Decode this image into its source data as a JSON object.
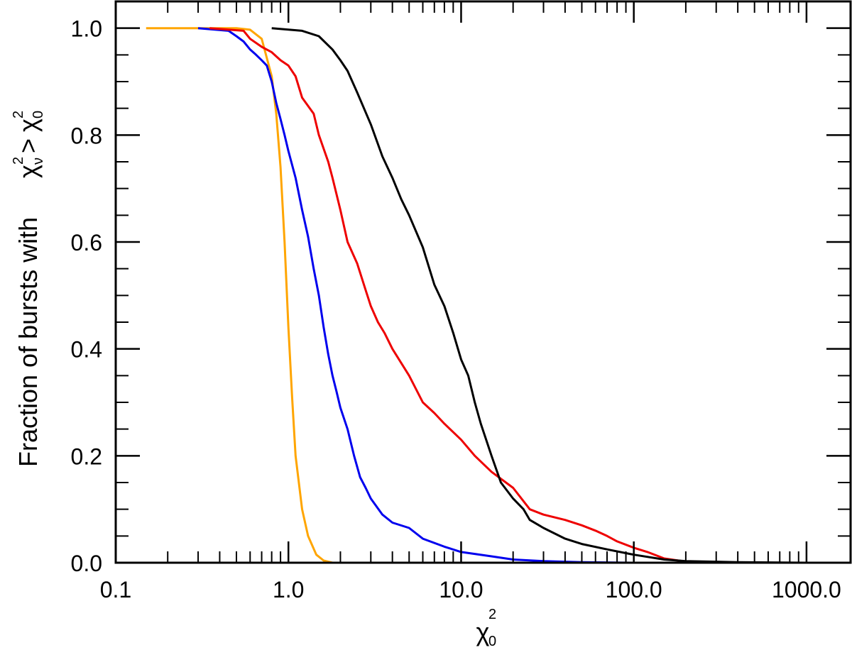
{
  "chart_data": {
    "type": "line",
    "title": "",
    "x_scale": "log",
    "xlim": [
      0.1,
      1800
    ],
    "ylim": [
      0,
      1.05
    ],
    "grid": false,
    "legend": "none",
    "xlabel": {
      "symbol": "χ",
      "superscript": "2",
      "subscript": "0"
    },
    "ylabel": {
      "prefix": "Fraction of bursts with",
      "lhs_symbol": "χ",
      "lhs_superscript": "2",
      "lhs_subscript": "ν",
      "relation": ">",
      "rhs_symbol": "χ",
      "rhs_superscript": "2",
      "rhs_subscript": "0"
    },
    "x_tick_values": [
      0.1,
      1,
      10,
      100,
      1000
    ],
    "x_tick_labels": [
      "0.1",
      "1.0",
      "10.0",
      "100.0",
      "1000.0"
    ],
    "y_tick_values": [
      0,
      0.2,
      0.4,
      0.6,
      0.8,
      1.0
    ],
    "y_tick_labels": [
      "0.0",
      "0.2",
      "0.4",
      "0.6",
      "0.8",
      "1.0"
    ],
    "series": [
      {
        "color": "#ffa500",
        "points": [
          [
            0.15,
            1.0
          ],
          [
            0.5,
            1.0
          ],
          [
            0.6,
            0.997
          ],
          [
            0.7,
            0.98
          ],
          [
            0.8,
            0.91
          ],
          [
            0.85,
            0.84
          ],
          [
            0.9,
            0.74
          ],
          [
            0.95,
            0.6
          ],
          [
            1.0,
            0.44
          ],
          [
            1.05,
            0.31
          ],
          [
            1.1,
            0.2
          ],
          [
            1.2,
            0.1
          ],
          [
            1.3,
            0.05
          ],
          [
            1.45,
            0.015
          ],
          [
            1.6,
            0.004
          ],
          [
            1.8,
            0.0
          ],
          [
            2.5,
            0.0
          ]
        ]
      },
      {
        "color": "#0000ee",
        "points": [
          [
            0.3,
            1.0
          ],
          [
            0.45,
            0.995
          ],
          [
            0.5,
            0.985
          ],
          [
            0.55,
            0.975
          ],
          [
            0.6,
            0.96
          ],
          [
            0.65,
            0.95
          ],
          [
            0.7,
            0.94
          ],
          [
            0.75,
            0.93
          ],
          [
            0.8,
            0.9
          ],
          [
            0.85,
            0.86
          ],
          [
            0.9,
            0.83
          ],
          [
            0.95,
            0.8
          ],
          [
            1.0,
            0.77
          ],
          [
            1.1,
            0.72
          ],
          [
            1.2,
            0.66
          ],
          [
            1.3,
            0.61
          ],
          [
            1.4,
            0.55
          ],
          [
            1.5,
            0.5
          ],
          [
            1.6,
            0.44
          ],
          [
            1.7,
            0.39
          ],
          [
            1.8,
            0.35
          ],
          [
            1.9,
            0.32
          ],
          [
            2.0,
            0.29
          ],
          [
            2.2,
            0.25
          ],
          [
            2.4,
            0.2
          ],
          [
            2.6,
            0.16
          ],
          [
            2.8,
            0.14
          ],
          [
            3.0,
            0.12
          ],
          [
            3.5,
            0.09
          ],
          [
            4.0,
            0.075
          ],
          [
            5.0,
            0.065
          ],
          [
            6.0,
            0.045
          ],
          [
            8.0,
            0.03
          ],
          [
            10.0,
            0.02
          ],
          [
            15.0,
            0.012
          ],
          [
            20.0,
            0.006
          ],
          [
            30.0,
            0.003
          ],
          [
            50.0,
            0.001
          ],
          [
            100.0,
            0.0
          ],
          [
            400.0,
            0.0
          ]
        ]
      },
      {
        "color": "#ee0000",
        "points": [
          [
            0.35,
            1.0
          ],
          [
            0.55,
            0.995
          ],
          [
            0.6,
            0.98
          ],
          [
            0.7,
            0.965
          ],
          [
            0.8,
            0.955
          ],
          [
            0.9,
            0.94
          ],
          [
            1.0,
            0.93
          ],
          [
            1.1,
            0.91
          ],
          [
            1.2,
            0.87
          ],
          [
            1.4,
            0.84
          ],
          [
            1.5,
            0.8
          ],
          [
            1.7,
            0.75
          ],
          [
            1.8,
            0.72
          ],
          [
            2.0,
            0.66
          ],
          [
            2.2,
            0.6
          ],
          [
            2.5,
            0.56
          ],
          [
            2.8,
            0.51
          ],
          [
            3.0,
            0.48
          ],
          [
            3.3,
            0.45
          ],
          [
            3.6,
            0.43
          ],
          [
            4.0,
            0.4
          ],
          [
            5.0,
            0.35
          ],
          [
            6.0,
            0.3
          ],
          [
            7.0,
            0.28
          ],
          [
            8.0,
            0.26
          ],
          [
            10.0,
            0.23
          ],
          [
            12.0,
            0.2
          ],
          [
            15.0,
            0.17
          ],
          [
            20.0,
            0.14
          ],
          [
            25.0,
            0.1
          ],
          [
            30.0,
            0.09
          ],
          [
            40.0,
            0.08
          ],
          [
            50.0,
            0.07
          ],
          [
            60.0,
            0.06
          ],
          [
            70.0,
            0.05
          ],
          [
            80.0,
            0.04
          ],
          [
            100.0,
            0.028
          ],
          [
            120.0,
            0.02
          ],
          [
            150.0,
            0.008
          ],
          [
            200.0,
            0.002
          ],
          [
            300.0,
            0.0
          ],
          [
            1000.0,
            0.0
          ]
        ]
      },
      {
        "color": "#000000",
        "points": [
          [
            0.8,
            1.0
          ],
          [
            1.2,
            0.995
          ],
          [
            1.5,
            0.985
          ],
          [
            1.8,
            0.96
          ],
          [
            2.0,
            0.94
          ],
          [
            2.2,
            0.92
          ],
          [
            2.5,
            0.88
          ],
          [
            3.0,
            0.82
          ],
          [
            3.5,
            0.76
          ],
          [
            4.0,
            0.72
          ],
          [
            4.5,
            0.68
          ],
          [
            5.0,
            0.65
          ],
          [
            6.0,
            0.59
          ],
          [
            7.0,
            0.52
          ],
          [
            8.0,
            0.48
          ],
          [
            9.0,
            0.43
          ],
          [
            10.0,
            0.38
          ],
          [
            11.0,
            0.35
          ],
          [
            12.0,
            0.3
          ],
          [
            13.0,
            0.26
          ],
          [
            15.0,
            0.2
          ],
          [
            17.0,
            0.15
          ],
          [
            20.0,
            0.12
          ],
          [
            23.0,
            0.1
          ],
          [
            25.0,
            0.08
          ],
          [
            30.0,
            0.065
          ],
          [
            40.0,
            0.045
          ],
          [
            50.0,
            0.035
          ],
          [
            70.0,
            0.025
          ],
          [
            100.0,
            0.015
          ],
          [
            150.0,
            0.006
          ],
          [
            200.0,
            0.003
          ],
          [
            400.0,
            0.001
          ],
          [
            1000.0,
            0.0
          ]
        ]
      }
    ]
  }
}
